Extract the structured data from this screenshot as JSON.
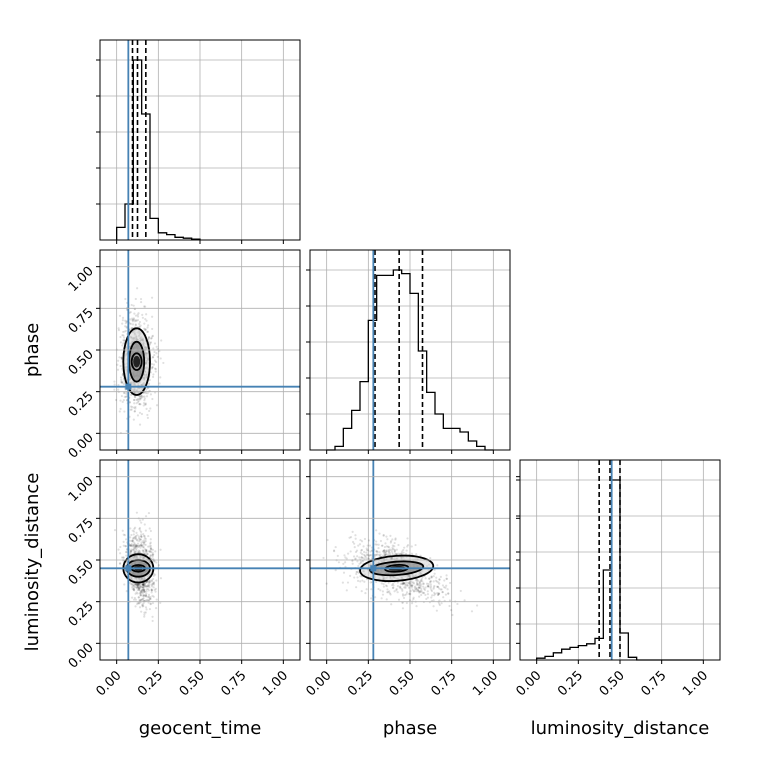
{
  "chart_data": {
    "type": "corner",
    "parameters": [
      "geocent_time",
      "phase",
      "luminosity_distance"
    ],
    "axis_range": [
      -0.1,
      1.1
    ],
    "tick_values": [
      0.0,
      0.25,
      0.5,
      0.75,
      1.0
    ],
    "tick_labels": [
      "0.00",
      "0.25",
      "0.50",
      "0.75",
      "1.00"
    ],
    "grid": true,
    "colors": {
      "truth": "#4682b4",
      "hist": "#000000",
      "scatter": "#000000"
    },
    "truths": {
      "geocent_time": 0.07,
      "phase": 0.28,
      "luminosity_distance": 0.45
    },
    "quantiles": {
      "geocent_time": [
        0.095,
        0.125,
        0.175
      ],
      "phase": [
        0.29,
        0.435,
        0.575
      ],
      "luminosity_distance": [
        0.375,
        0.44,
        0.5
      ]
    },
    "histograms": {
      "geocent_time": {
        "edges": [
          0.0,
          0.05,
          0.1,
          0.15,
          0.2,
          0.25,
          0.3,
          0.35,
          0.4,
          0.45,
          0.5
        ],
        "counts": [
          0.07,
          0.2,
          1.0,
          0.7,
          0.12,
          0.04,
          0.03,
          0.015,
          0.01,
          0.005
        ]
      },
      "phase": {
        "edges": [
          0.0,
          0.05,
          0.1,
          0.15,
          0.2,
          0.25,
          0.3,
          0.35,
          0.4,
          0.45,
          0.5,
          0.55,
          0.6,
          0.65,
          0.7,
          0.75,
          0.8,
          0.85,
          0.9,
          0.95,
          1.0
        ],
        "counts": [
          0.0,
          0.02,
          0.12,
          0.22,
          0.38,
          0.72,
          0.97,
          0.97,
          1.0,
          0.98,
          0.87,
          0.55,
          0.32,
          0.2,
          0.12,
          0.12,
          0.1,
          0.05,
          0.02,
          0.0
        ]
      },
      "luminosity_distance": {
        "edges": [
          0.0,
          0.05,
          0.1,
          0.15,
          0.2,
          0.25,
          0.3,
          0.35,
          0.4,
          0.45,
          0.5,
          0.55,
          0.6,
          0.65,
          0.7,
          0.75,
          0.8,
          0.85,
          0.9,
          0.95,
          1.0
        ],
        "counts": [
          0.01,
          0.02,
          0.04,
          0.06,
          0.07,
          0.08,
          0.09,
          0.12,
          0.5,
          1.0,
          0.15,
          0.015,
          0.0,
          0.0,
          0.0,
          0.0,
          0.0,
          0.0,
          0.0,
          0.0
        ]
      }
    },
    "samples": {
      "geocent_time_vs_phase": {
        "center": [
          0.12,
          0.43
        ],
        "spread": [
          0.05,
          0.15
        ],
        "tilt": 0.0,
        "contours": [
          [
            0.03,
            0.05
          ],
          [
            0.045,
            0.12
          ],
          [
            0.08,
            0.2
          ]
        ]
      },
      "geocent_time_vs_luminosity_distance": {
        "center": [
          0.13,
          0.45
        ],
        "spread": [
          0.05,
          0.1
        ],
        "tilt": 0.0,
        "contours": [
          [
            0.04,
            0.02
          ],
          [
            0.07,
            0.05
          ],
          [
            0.09,
            0.085
          ]
        ]
      },
      "phase_vs_luminosity_distance": {
        "center": [
          0.42,
          0.45
        ],
        "spread": [
          0.15,
          0.08
        ],
        "tilt": -0.35,
        "contours": [
          [
            0.07,
            0.02
          ],
          [
            0.16,
            0.04
          ],
          [
            0.22,
            0.075
          ]
        ]
      }
    }
  }
}
